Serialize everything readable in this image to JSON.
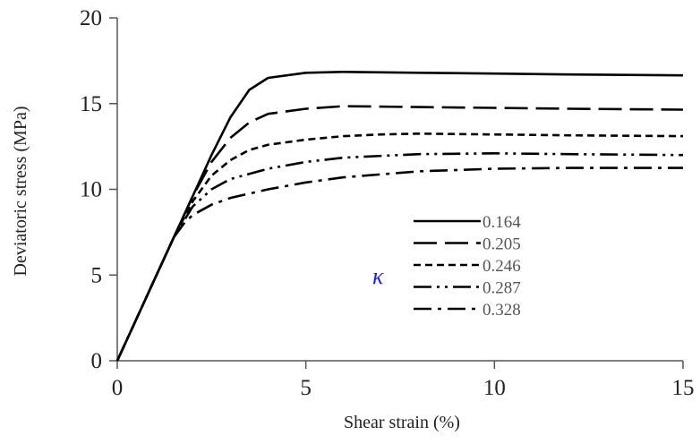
{
  "chart_data": {
    "type": "line",
    "title": "",
    "xlabel": "Shear strain (%)",
    "ylabel": "Deviatoric stress (MPa)",
    "xlim": [
      0,
      15
    ],
    "ylim": [
      0,
      20
    ],
    "xticks": [
      "0",
      "5",
      "10",
      "15"
    ],
    "yticks": [
      "0",
      "5",
      "10",
      "15",
      "20"
    ],
    "grid": false,
    "legend": {
      "title": "κ",
      "placement": "center-right"
    },
    "series": [
      {
        "name": "0.164",
        "dash": "solid",
        "points": [
          [
            0,
            0
          ],
          [
            0.5,
            2.4
          ],
          [
            1,
            4.8
          ],
          [
            1.5,
            7.2
          ],
          [
            2,
            9.6
          ],
          [
            2.5,
            12.0
          ],
          [
            3,
            14.2
          ],
          [
            3.5,
            15.8
          ],
          [
            4,
            16.5
          ],
          [
            5,
            16.8
          ],
          [
            6,
            16.85
          ],
          [
            8,
            16.8
          ],
          [
            10,
            16.75
          ],
          [
            12,
            16.7
          ],
          [
            15,
            16.65
          ]
        ]
      },
      {
        "name": "0.205",
        "dash": "long-dash",
        "points": [
          [
            0,
            0
          ],
          [
            0.5,
            2.4
          ],
          [
            1,
            4.8
          ],
          [
            1.5,
            7.2
          ],
          [
            2,
            9.6
          ],
          [
            2.5,
            11.6
          ],
          [
            3,
            13.0
          ],
          [
            3.5,
            13.9
          ],
          [
            4,
            14.4
          ],
          [
            5,
            14.7
          ],
          [
            6,
            14.85
          ],
          [
            8,
            14.8
          ],
          [
            10,
            14.75
          ],
          [
            12,
            14.7
          ],
          [
            15,
            14.65
          ]
        ]
      },
      {
        "name": "0.246",
        "dash": "short-dash",
        "points": [
          [
            0,
            0
          ],
          [
            0.5,
            2.4
          ],
          [
            1,
            4.8
          ],
          [
            1.5,
            7.2
          ],
          [
            2,
            9.3
          ],
          [
            2.5,
            10.8
          ],
          [
            3,
            11.7
          ],
          [
            3.5,
            12.3
          ],
          [
            4,
            12.6
          ],
          [
            5,
            12.9
          ],
          [
            6,
            13.1
          ],
          [
            7,
            13.2
          ],
          [
            8,
            13.25
          ],
          [
            10,
            13.2
          ],
          [
            12,
            13.15
          ],
          [
            15,
            13.1
          ]
        ]
      },
      {
        "name": "0.287",
        "dash": "dash-dot-dot",
        "points": [
          [
            0,
            0
          ],
          [
            0.5,
            2.4
          ],
          [
            1,
            4.8
          ],
          [
            1.5,
            7.2
          ],
          [
            2,
            9.0
          ],
          [
            2.5,
            10.0
          ],
          [
            3,
            10.6
          ],
          [
            4,
            11.2
          ],
          [
            5,
            11.6
          ],
          [
            6,
            11.85
          ],
          [
            8,
            12.05
          ],
          [
            10,
            12.1
          ],
          [
            12,
            12.05
          ],
          [
            15,
            12.0
          ]
        ]
      },
      {
        "name": "0.328",
        "dash": "dash-dot",
        "points": [
          [
            0,
            0
          ],
          [
            0.5,
            2.4
          ],
          [
            1,
            4.8
          ],
          [
            1.5,
            7.2
          ],
          [
            1.8,
            8.1
          ],
          [
            2,
            8.5
          ],
          [
            2.5,
            9.1
          ],
          [
            3,
            9.5
          ],
          [
            4,
            10.0
          ],
          [
            5,
            10.4
          ],
          [
            6,
            10.7
          ],
          [
            8,
            11.05
          ],
          [
            10,
            11.2
          ],
          [
            12,
            11.25
          ],
          [
            15,
            11.25
          ]
        ]
      }
    ]
  }
}
